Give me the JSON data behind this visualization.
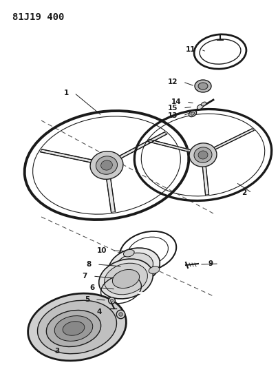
{
  "title": "81J19 400",
  "bg_color": "#ffffff",
  "line_color": "#1a1a1a",
  "title_fontsize": 10,
  "label_fontsize": 7.5,
  "fig_w": 4.04,
  "fig_h": 5.33,
  "dpi": 100
}
